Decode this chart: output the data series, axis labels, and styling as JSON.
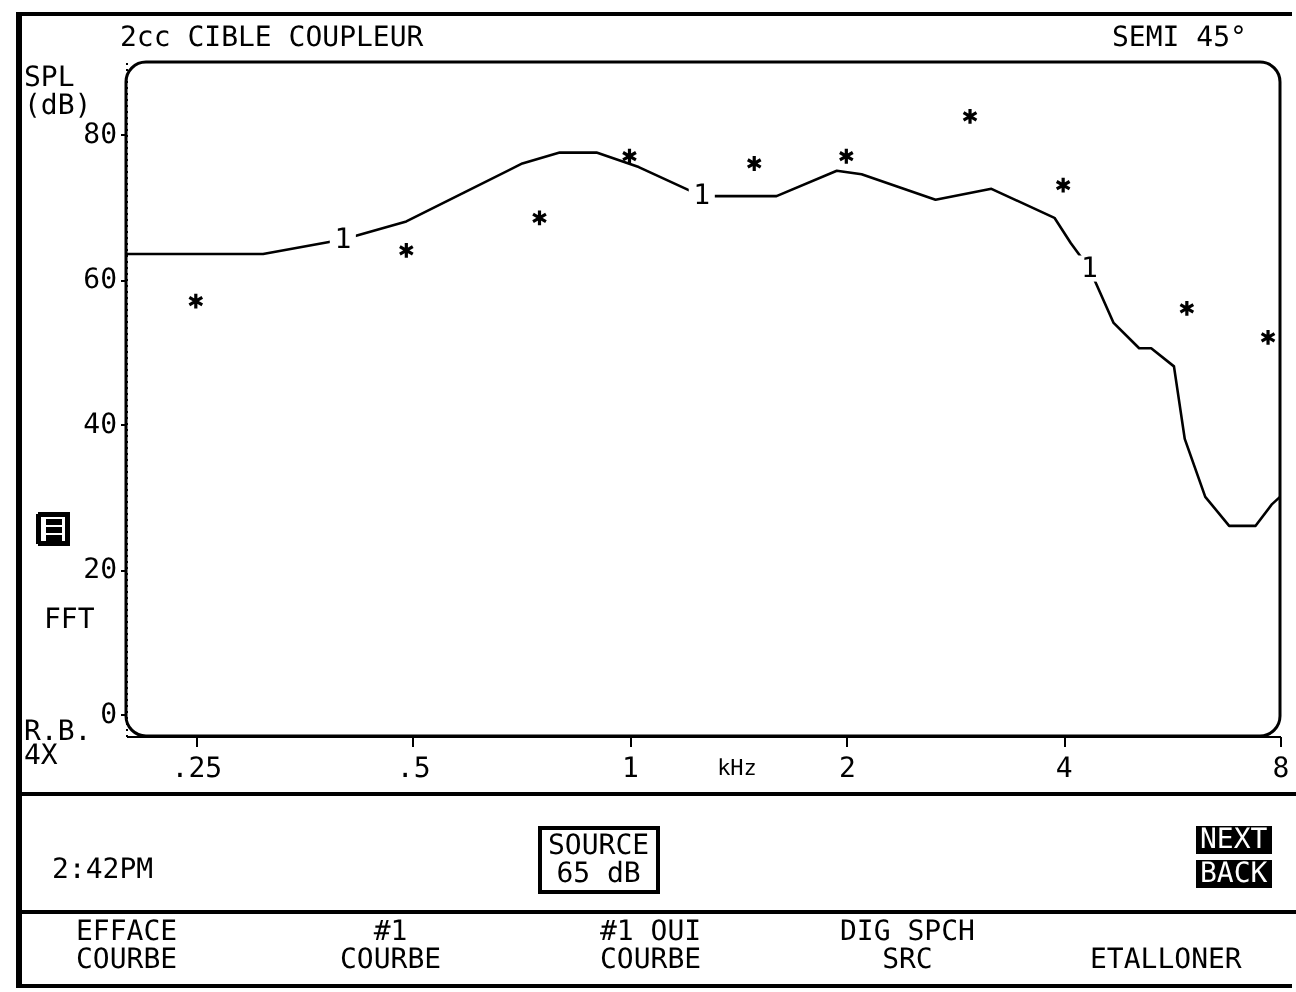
{
  "chart_data": {
    "type": "line",
    "title": "2cc CIBLE COUPLEUR",
    "ylabel": "SPL\n(dB)",
    "xlabel": "kHz",
    "log": "x",
    "xlim": [
      0.2,
      8
    ],
    "ylim": [
      -3,
      90
    ],
    "xticks": [
      {
        "value": 0.25,
        "label": ".25"
      },
      {
        "value": 0.5,
        "label": ".5"
      },
      1,
      2,
      4,
      8
    ],
    "yticks": [
      0,
      20,
      40,
      60,
      80
    ],
    "series": [
      {
        "type": "line",
        "color": "#000000",
        "line_style": "solid",
        "x": [
          0.2,
          0.31,
          0.4,
          0.49,
          0.59,
          0.71,
          0.8,
          0.9,
          1.03,
          1.26,
          1.38,
          1.6,
          1.94,
          2.1,
          2.66,
          3.18,
          3.89,
          4.1,
          4.35,
          4.7,
          5.1,
          5.3,
          5.7,
          5.9,
          6.3,
          6.8,
          7.4,
          7.8,
          8
        ],
        "values": [
          63.5,
          63.5,
          65.5,
          68,
          72,
          76,
          77.5,
          77.5,
          75.5,
          71.5,
          71.5,
          71.5,
          75,
          74.5,
          71,
          72.5,
          68.5,
          65,
          61.5,
          54,
          50.5,
          50.5,
          48,
          38,
          30,
          26,
          26,
          29,
          30
        ]
      },
      {
        "type": "scatter",
        "color": "#000000",
        "marker": "cross",
        "x": [
          0.25,
          0.49,
          0.75,
          1,
          1.49,
          2,
          2.97,
          4,
          5.94,
          7.7
        ],
        "values": [
          57,
          64,
          68.5,
          77,
          76,
          77,
          82.5,
          73,
          56,
          52
        ]
      }
    ],
    "annotations": [
      "SEMI  45°",
      "FFT",
      "R.B.\n4X",
      "2:42PM",
      "SOURCE\n65 dB",
      "NEXT",
      "BACK",
      "EFFACE\nCOURBE",
      "#1\nCOURBE",
      "#1 OUI\nCOURBE",
      "DIG SPCH\nSRC",
      "ETALLONER",
      {
        "text": "1",
        "x": 0.4,
        "y": 65.5
      },
      {
        "text": "1",
        "x": 1.26,
        "y": 71.5
      },
      {
        "text": "1",
        "x": 4.35,
        "y": 61.5
      }
    ]
  }
}
